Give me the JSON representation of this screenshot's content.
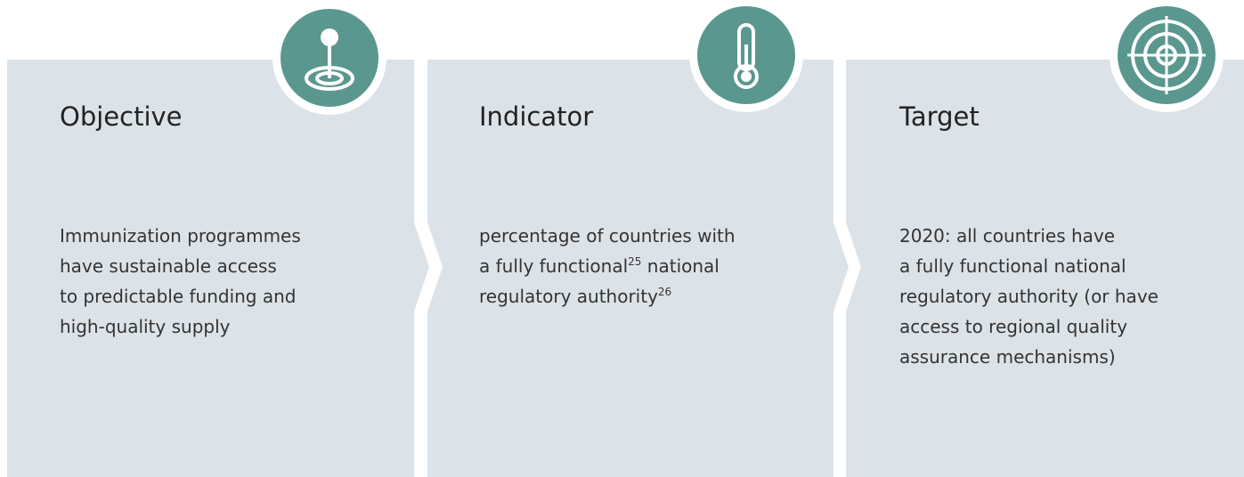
{
  "panels": [
    {
      "title": "Objective",
      "lines": [
        [
          {
            "text": "Immunization programmes"
          }
        ],
        [
          {
            "text": "have sustainable access"
          }
        ],
        [
          {
            "text": "to predictable funding and"
          }
        ],
        [
          {
            "text": "high-quality supply"
          }
        ]
      ]
    },
    {
      "title": "Indicator",
      "lines": [
        [
          {
            "text": "percentage of countries with"
          }
        ],
        [
          {
            "text": "a fully functional"
          },
          {
            "sup": "25"
          },
          {
            "text": " national"
          }
        ],
        [
          {
            "text": "regulatory authority"
          },
          {
            "sup": "26"
          }
        ]
      ]
    },
    {
      "title": "Target",
      "lines": [
        [
          {
            "text": "2020: all countries have"
          }
        ],
        [
          {
            "text": "a fully functional national"
          }
        ],
        [
          {
            "text": "regulatory authority (or have"
          }
        ],
        [
          {
            "text": "access to regional quality"
          }
        ],
        [
          {
            "text": "assurance mechanisms)"
          }
        ]
      ]
    }
  ]
}
